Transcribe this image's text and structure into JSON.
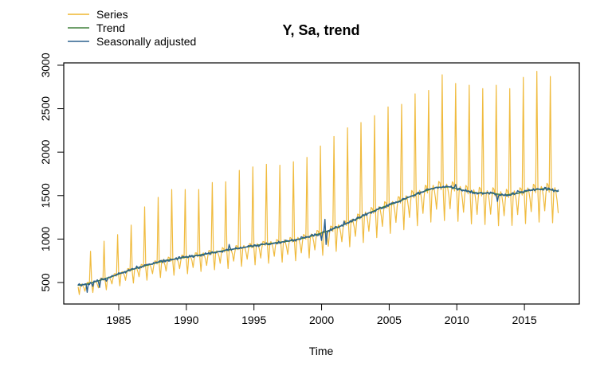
{
  "title": "Y, Sa, trend",
  "xlabel": "Time",
  "legend": [
    {
      "label": "Series",
      "color": "#EFB52E"
    },
    {
      "label": "Trend",
      "color": "#41813C"
    },
    {
      "label": "Seasonally adjusted",
      "color": "#2C618E"
    }
  ],
  "colors": {
    "series": "#EFB52E",
    "trend": "#41813C",
    "sa": "#2C618E",
    "axis": "#000000"
  },
  "chart_data": {
    "type": "line",
    "title": "Y, Sa, trend",
    "xlabel": "Time",
    "ylabel": "",
    "grid": false,
    "legend_position": "top-left-outside",
    "frequency": "monthly",
    "start": [
      1982,
      1
    ],
    "end": [
      2017,
      7
    ],
    "xlim": [
      1980.9,
      2019.1
    ],
    "ylim": [
      380,
      2935
    ],
    "x_ticks": [
      1985,
      1990,
      1995,
      2000,
      2005,
      2010,
      2015
    ],
    "y_ticks": [
      500,
      1000,
      1500,
      2000,
      2500,
      3000
    ],
    "series": [
      {
        "name": "Series",
        "role": "raw-monthly-with-december-peaks"
      },
      {
        "name": "Trend",
        "role": "smooth-trend"
      },
      {
        "name": "Seasonally adjusted",
        "role": "trend-plus-irregular"
      }
    ],
    "trend_anchors": {
      "comment": "trend value at mid-year (year + 0.5)",
      "years": [
        1982,
        1983,
        1984,
        1985,
        1986,
        1987,
        1988,
        1989,
        1990,
        1991,
        1992,
        1993,
        1994,
        1995,
        1996,
        1997,
        1998,
        1999,
        2000,
        2001,
        2002,
        2003,
        2004,
        2005,
        2006,
        2007,
        2008,
        2009,
        2010,
        2011,
        2012,
        2013,
        2014,
        2015,
        2016,
        2017
      ],
      "values": [
        475,
        520,
        570,
        625,
        675,
        715,
        755,
        780,
        805,
        830,
        860,
        885,
        910,
        935,
        955,
        975,
        1005,
        1045,
        1095,
        1155,
        1225,
        1300,
        1365,
        1420,
        1485,
        1545,
        1595,
        1600,
        1560,
        1530,
        1530,
        1505,
        1525,
        1565,
        1580,
        1550
      ]
    },
    "trend_endpoints": {
      "start_t": 1982.0,
      "start_v": 470,
      "end_t": 2017.5,
      "end_v": 1545
    },
    "december_peaks": {
      "years": [
        1982,
        1983,
        1984,
        1985,
        1986,
        1987,
        1988,
        1989,
        1990,
        1991,
        1992,
        1993,
        1994,
        1995,
        1996,
        1997,
        1998,
        1999,
        2000,
        2001,
        2002,
        2003,
        2004,
        2005,
        2006,
        2007,
        2008,
        2009,
        2010,
        2011,
        2012,
        2013,
        2014,
        2015,
        2016
      ],
      "values": [
        860,
        975,
        1050,
        1160,
        1370,
        1480,
        1570,
        1570,
        1570,
        1650,
        1660,
        1790,
        1830,
        1860,
        1850,
        1890,
        1940,
        2070,
        2180,
        2280,
        2340,
        2420,
        2520,
        2550,
        2670,
        2710,
        2890,
        2790,
        2770,
        2730,
        2770,
        2730,
        2860,
        2930,
        2870
      ]
    },
    "seasonal_factors": [
      0.96,
      0.76,
      0.98,
      1.02,
      0.99,
      0.93,
      0.84,
      0.96,
      1.04,
      1.03,
      0.98,
      null
    ],
    "sa_noise_halfrange": 16,
    "series_jitter_halfrange": 5,
    "sa_anomalies": [
      {
        "t": 1982.67,
        "d": -85
      },
      {
        "t": 1983.08,
        "d": -55
      },
      {
        "t": 1983.58,
        "d": -70
      },
      {
        "t": 1984.08,
        "d": -50
      },
      {
        "t": 1986.33,
        "d": 35
      },
      {
        "t": 1993.17,
        "d": 45
      },
      {
        "t": 1998.5,
        "d": 35
      },
      {
        "t": 2000.0,
        "d": -70
      },
      {
        "t": 2000.25,
        "d": 155
      },
      {
        "t": 2000.33,
        "d": -150
      },
      {
        "t": 2001.67,
        "d": 45
      },
      {
        "t": 2009.92,
        "d": 40
      },
      {
        "t": 2013.0,
        "d": -85
      },
      {
        "t": 2014.5,
        "d": 30
      }
    ]
  }
}
